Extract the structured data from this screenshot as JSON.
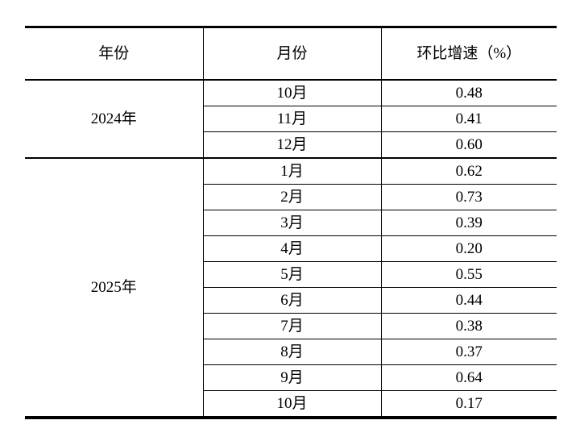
{
  "table": {
    "columns": [
      "年份",
      "月份",
      "环比增速（%）"
    ],
    "groups": [
      {
        "year": "2024年",
        "rows": [
          {
            "month": "10月",
            "value": "0.48"
          },
          {
            "month": "11月",
            "value": "0.41"
          },
          {
            "month": "12月",
            "value": "0.60"
          }
        ]
      },
      {
        "year": "2025年",
        "rows": [
          {
            "month": "1月",
            "value": "0.62"
          },
          {
            "month": "2月",
            "value": "0.73"
          },
          {
            "month": "3月",
            "value": "0.39"
          },
          {
            "month": "4月",
            "value": "0.20"
          },
          {
            "month": "5月",
            "value": "0.55"
          },
          {
            "month": "6月",
            "value": "0.44"
          },
          {
            "month": "7月",
            "value": "0.38"
          },
          {
            "month": "8月",
            "value": "0.37"
          },
          {
            "month": "9月",
            "value": "0.64"
          },
          {
            "month": "10月",
            "value": "0.17"
          }
        ]
      }
    ]
  },
  "colors": {
    "border": "#000000",
    "text": "#000000",
    "background": "#ffffff"
  }
}
